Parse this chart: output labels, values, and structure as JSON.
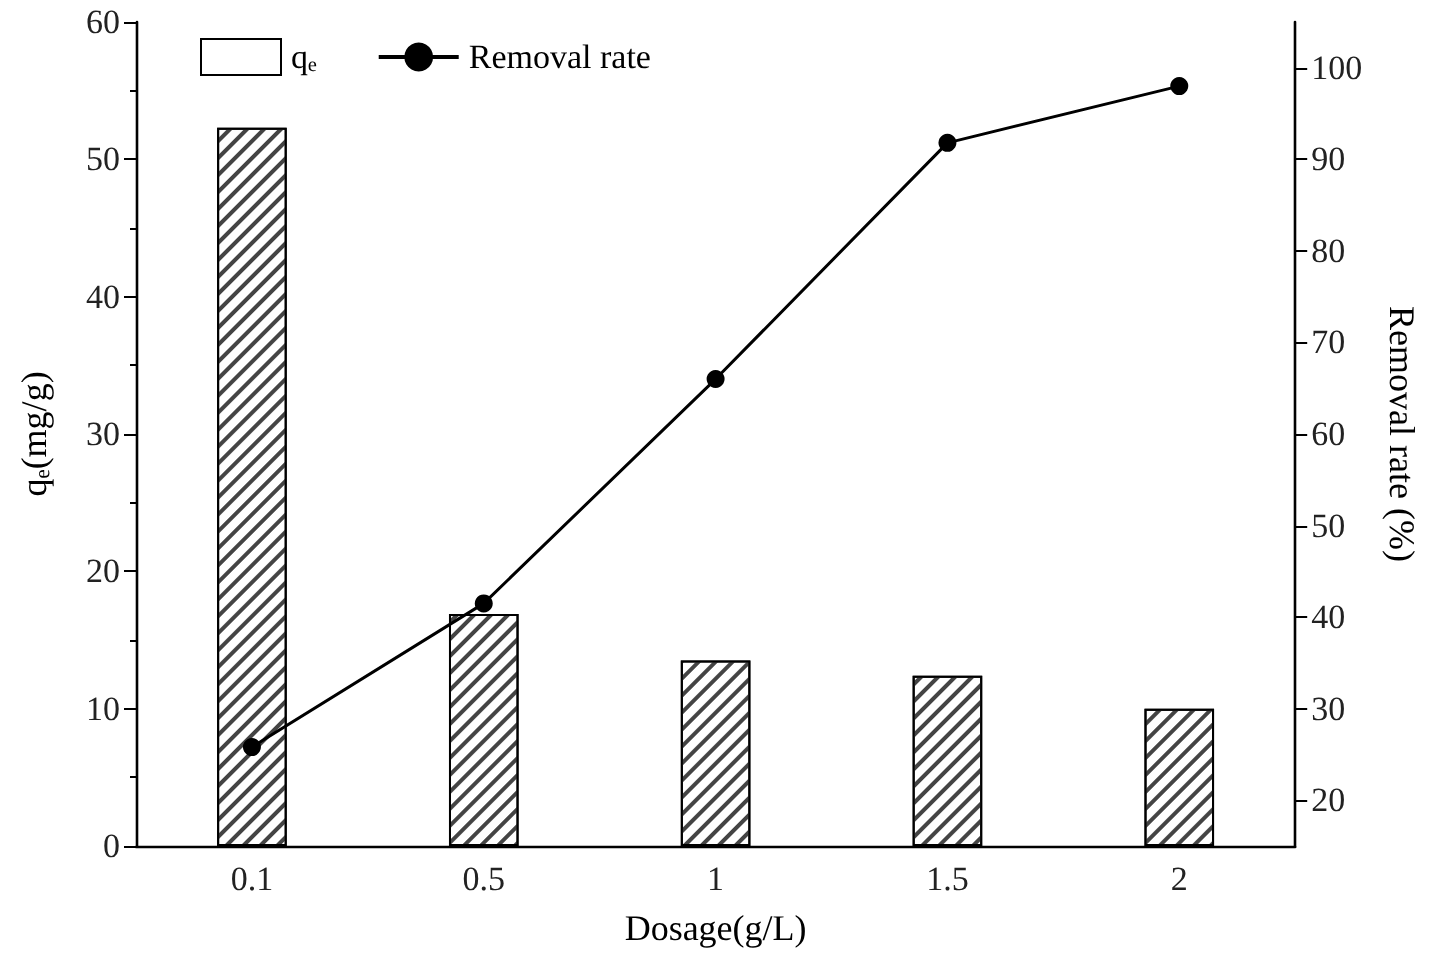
{
  "chart_data": {
    "type": "bar",
    "xlabel": "Dosage(g/L)",
    "ylabel": "qₑ(mg/g)",
    "y2label": "Removal rate (%)",
    "categories": [
      "0.1",
      "0.5",
      "1",
      "1.5",
      "2"
    ],
    "series": [
      {
        "name": "qₑ",
        "color": "#ffffff",
        "values": [
          52.3,
          16.9,
          13.5,
          12.4,
          10.0
        ]
      },
      {
        "name": "Removal rate",
        "type": "line",
        "axis": "y2",
        "color": "#000000",
        "marker": "circle",
        "values": [
          25.8,
          41.5,
          66.0,
          91.8,
          98.0
        ]
      }
    ],
    "ylim": [
      0,
      60
    ],
    "yticks": [
      0,
      10,
      20,
      30,
      40,
      50,
      60
    ],
    "y2lim": [
      15,
      105
    ],
    "y2ticks": [
      20,
      30,
      40,
      50,
      60,
      70,
      80,
      90,
      100
    ],
    "legend": "top left",
    "grid": false
  }
}
